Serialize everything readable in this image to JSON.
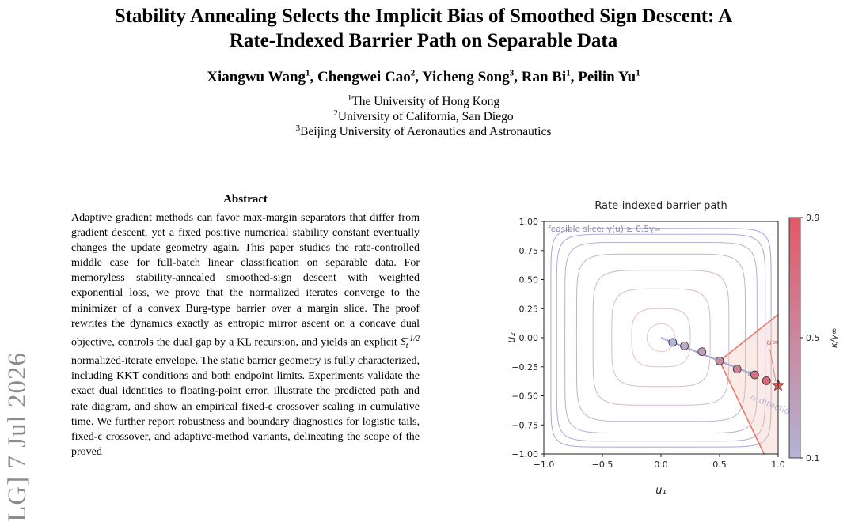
{
  "sidebar": {
    "arxiv_stamp": "LG] 7 Jul 2026"
  },
  "paper": {
    "title_line1": "Stability Annealing Selects the Implicit Bias of Smoothed Sign Descent: A",
    "title_line2": "Rate-Indexed Barrier Path on Separable Data",
    "authors": [
      {
        "name": "Xiangwu Wang",
        "aff": "1",
        "sep": ", "
      },
      {
        "name": "Chengwei Cao",
        "aff": "2",
        "sep": ", "
      },
      {
        "name": "Yicheng Song",
        "aff": "3",
        "sep": ", "
      },
      {
        "name": "Ran Bi",
        "aff": "1",
        "sep": ", "
      },
      {
        "name": "Peilin Yu",
        "aff": "1",
        "sep": ""
      }
    ],
    "affiliations": [
      {
        "num": "1",
        "name": "The University of Hong Kong"
      },
      {
        "num": "2",
        "name": "University of California, San Diego"
      },
      {
        "num": "3",
        "name": "Beijing University of Aeronautics and Astronautics"
      }
    ],
    "abstract_heading": "Abstract",
    "abstract_part1": "Adaptive gradient methods can favor max-margin separators that differ from gradient descent, yet a fixed positive numerical stability constant eventually changes the update geometry again. This paper studies the rate-controlled middle case for full-batch linear classification on separable data. For memoryless stability-annealed smoothed-sign descent with weighted exponential loss, we prove that the normalized iterates converge to the minimizer of a convex Burg-type barrier over a margin slice. The proof rewrites the dynamics exactly as entropic mirror ascent on a concave dual objective, controls the dual gap by a KL recursion, and yields an explicit ",
    "abstract_math": "S",
    "abstract_math_sub": "t",
    "abstract_math_sup": "−1/2",
    "abstract_part2": " normalized-iterate envelope. The static barrier geometry is fully characterized, including KKT conditions and both endpoint limits. Experiments validate the exact dual identities to floating-point error, illustrate the predicted path and rate diagram, and show an empirical fixed-ϵ crossover scaling in cumulative time. We further report robustness and boundary diagnostics for logistic tails, fixed-ϵ crossover, and adaptive-method variants, delineating the scope of the proved"
  },
  "chart_data": {
    "type": "scatter",
    "title": "Rate-indexed barrier path",
    "xlabel": "u₁",
    "ylabel": "u₂",
    "xlim": [
      -1.0,
      1.0
    ],
    "ylim": [
      -1.0,
      1.0
    ],
    "xticks": [
      -1.0,
      -0.5,
      0.0,
      0.5,
      1.0
    ],
    "yticks": [
      -1.0,
      -0.75,
      -0.5,
      -0.25,
      0.0,
      0.25,
      0.5,
      0.75,
      1.0
    ],
    "xtick_labels": [
      "−1.0",
      "−0.5",
      "0.0",
      "0.5",
      "1.0"
    ],
    "ytick_labels": [
      "−1.00",
      "−0.75",
      "−0.50",
      "−0.25",
      "0.00",
      "0.25",
      "0.50",
      "0.75",
      "1.00"
    ],
    "grid": false,
    "slice_label": "feasible slice: γ(u) ≥ 0.5γ∞",
    "u_inf_label": "u∞",
    "direction_label": "v₂ direction",
    "colorbar": {
      "label": "κ/γ∞",
      "range": [
        0.1,
        0.9
      ],
      "ticks": [
        0.1,
        0.5,
        0.9
      ],
      "tick_labels": [
        "0.1",
        "0.5",
        "0.9"
      ],
      "color_low": "#b4b4d6",
      "color_high": "#e05a66"
    },
    "contour_levels": [
      0.12,
      0.25,
      0.42,
      0.58,
      0.72,
      0.82,
      0.89,
      0.94
    ],
    "path_points": {
      "x": [
        0.1,
        0.2,
        0.35,
        0.5,
        0.65,
        0.8,
        0.9,
        1.0
      ],
      "y": [
        -0.04,
        -0.07,
        -0.12,
        -0.2,
        -0.27,
        -0.32,
        -0.37,
        -0.41
      ],
      "kappa": [
        0.1,
        0.2,
        0.3,
        0.45,
        0.55,
        0.7,
        0.8,
        0.9
      ]
    },
    "arrow": {
      "from": [
        0.0,
        0.0
      ],
      "to": [
        0.75,
        -0.3
      ]
    },
    "u_inf": [
      1.0,
      -0.41
    ],
    "feasible_region": {
      "apex": [
        0.5,
        -0.2
      ],
      "upper_end": [
        1.0,
        0.2
      ],
      "lower_end": [
        0.88,
        -1.0
      ]
    }
  }
}
